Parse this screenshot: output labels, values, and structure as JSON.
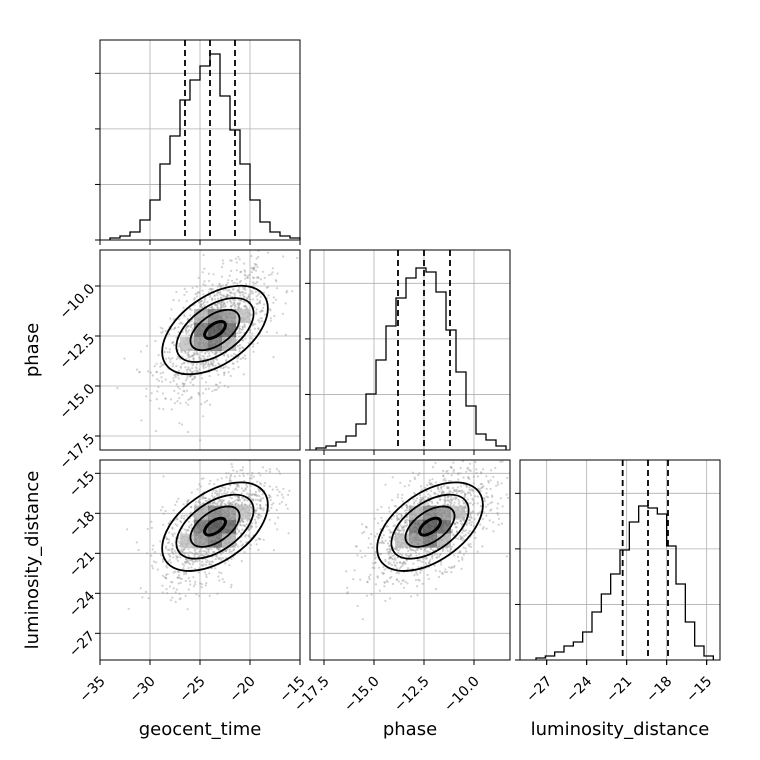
{
  "chart_data": {
    "type": "corner",
    "parameters": [
      {
        "name": "geocent_time",
        "xlabel": "geocent_time",
        "range": [
          -35,
          -15
        ],
        "ticks": [
          -35,
          -30,
          -25,
          -20,
          -15
        ],
        "tick_labels": [
          "−35",
          "−30",
          "−25",
          "−20",
          "−15"
        ],
        "quantiles": [
          -26.5,
          -24.0,
          -21.5
        ],
        "hist_edges": [
          -34,
          -33,
          -32,
          -31,
          -30,
          -29,
          -28,
          -27,
          -26,
          -25,
          -24,
          -23,
          -22,
          -21,
          -20,
          -19,
          -18,
          -17,
          -16,
          -15
        ],
        "hist_counts": [
          0.01,
          0.02,
          0.04,
          0.1,
          0.2,
          0.38,
          0.52,
          0.7,
          0.8,
          0.87,
          0.93,
          0.72,
          0.55,
          0.38,
          0.2,
          0.09,
          0.04,
          0.02,
          0.01
        ]
      },
      {
        "name": "phase",
        "ylabel": "phase",
        "xlabel": "phase",
        "range": [
          -18.2,
          -8.2
        ],
        "ticks": [
          -17.5,
          -15.0,
          -12.5,
          -10.0
        ],
        "tick_labels": [
          "−17.5",
          "−15.0",
          "−12.5",
          "−10.0"
        ],
        "quantiles": [
          -13.8,
          -12.5,
          -11.2
        ],
        "hist_edges": [
          -17.9,
          -17.4,
          -16.9,
          -16.4,
          -15.9,
          -15.4,
          -14.9,
          -14.4,
          -13.9,
          -13.4,
          -12.9,
          -12.4,
          -11.9,
          -11.4,
          -10.9,
          -10.4,
          -9.9,
          -9.4,
          -8.9,
          -8.4
        ],
        "hist_counts": [
          0.01,
          0.02,
          0.04,
          0.07,
          0.13,
          0.28,
          0.45,
          0.62,
          0.76,
          0.86,
          0.91,
          0.89,
          0.79,
          0.6,
          0.39,
          0.22,
          0.08,
          0.05,
          0.02
        ]
      },
      {
        "name": "luminosity_distance",
        "ylabel": "luminosity_distance",
        "xlabel": "luminosity_distance",
        "range": [
          -29,
          -14
        ],
        "ticks": [
          -27,
          -24,
          -21,
          -18,
          -15
        ],
        "tick_labels": [
          "−27",
          "−24",
          "−21",
          "−18",
          "−15"
        ],
        "quantiles": [
          -21.3,
          -19.4,
          -17.9
        ],
        "hist_edges": [
          -27.8,
          -27.1,
          -26.4,
          -25.7,
          -25.0,
          -24.3,
          -23.6,
          -22.9,
          -22.2,
          -21.5,
          -20.8,
          -20.1,
          -19.4,
          -18.7,
          -18.0,
          -17.3,
          -16.6,
          -15.9,
          -15.2,
          -14.5
        ],
        "hist_counts": [
          0.01,
          0.02,
          0.04,
          0.07,
          0.09,
          0.14,
          0.24,
          0.33,
          0.43,
          0.55,
          0.69,
          0.77,
          0.76,
          0.73,
          0.57,
          0.38,
          0.19,
          0.07,
          0.02
        ]
      }
    ],
    "pairs": [
      {
        "x": "geocent_time",
        "y": "phase",
        "mean": [
          -23.5,
          -12.2
        ],
        "sd": [
          2.6,
          1.5
        ],
        "corr": 0.55
      },
      {
        "x": "geocent_time",
        "y": "luminosity_distance",
        "mean": [
          -23.5,
          -19.0
        ],
        "sd": [
          2.6,
          2.0
        ],
        "corr": 0.55
      },
      {
        "x": "phase",
        "y": "luminosity_distance",
        "mean": [
          -12.2,
          -19.0
        ],
        "sd": [
          1.5,
          2.0
        ],
        "corr": 0.55
      }
    ],
    "yticks": {
      "phase": [
        -10.0,
        -12.5,
        -15.0,
        -17.5
      ],
      "phase_labels": [
        "−10.0",
        "−12.5",
        "−15.0",
        "−17.5"
      ],
      "luminosity_distance": [
        -15,
        -18,
        -21,
        -24,
        -27
      ],
      "luminosity_distance_labels": [
        "−15",
        "−18",
        "−21",
        "−24",
        "−27"
      ]
    },
    "grid": true,
    "colors": {
      "line": "#000000",
      "scatter": "#9a9a9a",
      "grid": "#b0b0b0"
    }
  }
}
